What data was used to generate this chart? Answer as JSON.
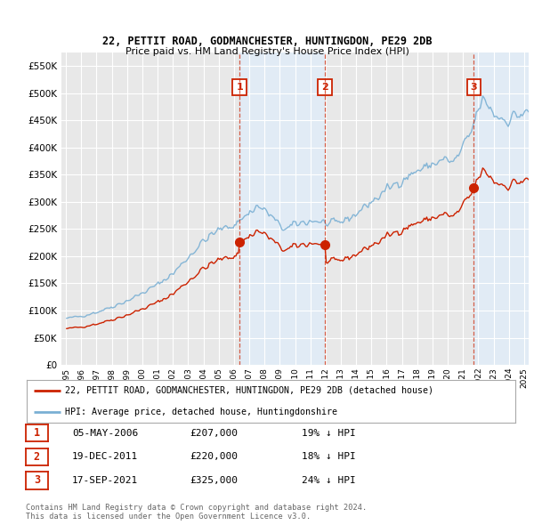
{
  "title": "22, PETTIT ROAD, GODMANCHESTER, HUNTINGDON, PE29 2DB",
  "subtitle": "Price paid vs. HM Land Registry's House Price Index (HPI)",
  "property_label": "22, PETTIT ROAD, GODMANCHESTER, HUNTINGDON, PE29 2DB (detached house)",
  "hpi_label": "HPI: Average price, detached house, Huntingdonshire",
  "footnote": "Contains HM Land Registry data © Crown copyright and database right 2024.\nThis data is licensed under the Open Government Licence v3.0.",
  "sales": [
    {
      "num": 1,
      "date": "05-MAY-2006",
      "price": 207000,
      "x_year": 2006.37,
      "hpi_pct": "19% ↓ HPI"
    },
    {
      "num": 2,
      "date": "19-DEC-2011",
      "price": 220000,
      "x_year": 2011.96,
      "hpi_pct": "18% ↓ HPI"
    },
    {
      "num": 3,
      "date": "17-SEP-2021",
      "price": 325000,
      "x_year": 2021.71,
      "hpi_pct": "24% ↓ HPI"
    }
  ],
  "ylim": [
    0,
    575000
  ],
  "yticks": [
    0,
    50000,
    100000,
    150000,
    200000,
    250000,
    300000,
    350000,
    400000,
    450000,
    500000,
    550000
  ],
  "xlim_start": 1994.7,
  "xlim_end": 2025.3,
  "background_color": "#ffffff",
  "plot_bg_color": "#e8e8e8",
  "grid_color": "#ffffff",
  "hpi_color": "#7ab0d4",
  "hpi_fill_color": "#daeaf5",
  "price_color": "#cc2200",
  "vline_color": "#cc2200",
  "shade_color": "#ddeeff"
}
